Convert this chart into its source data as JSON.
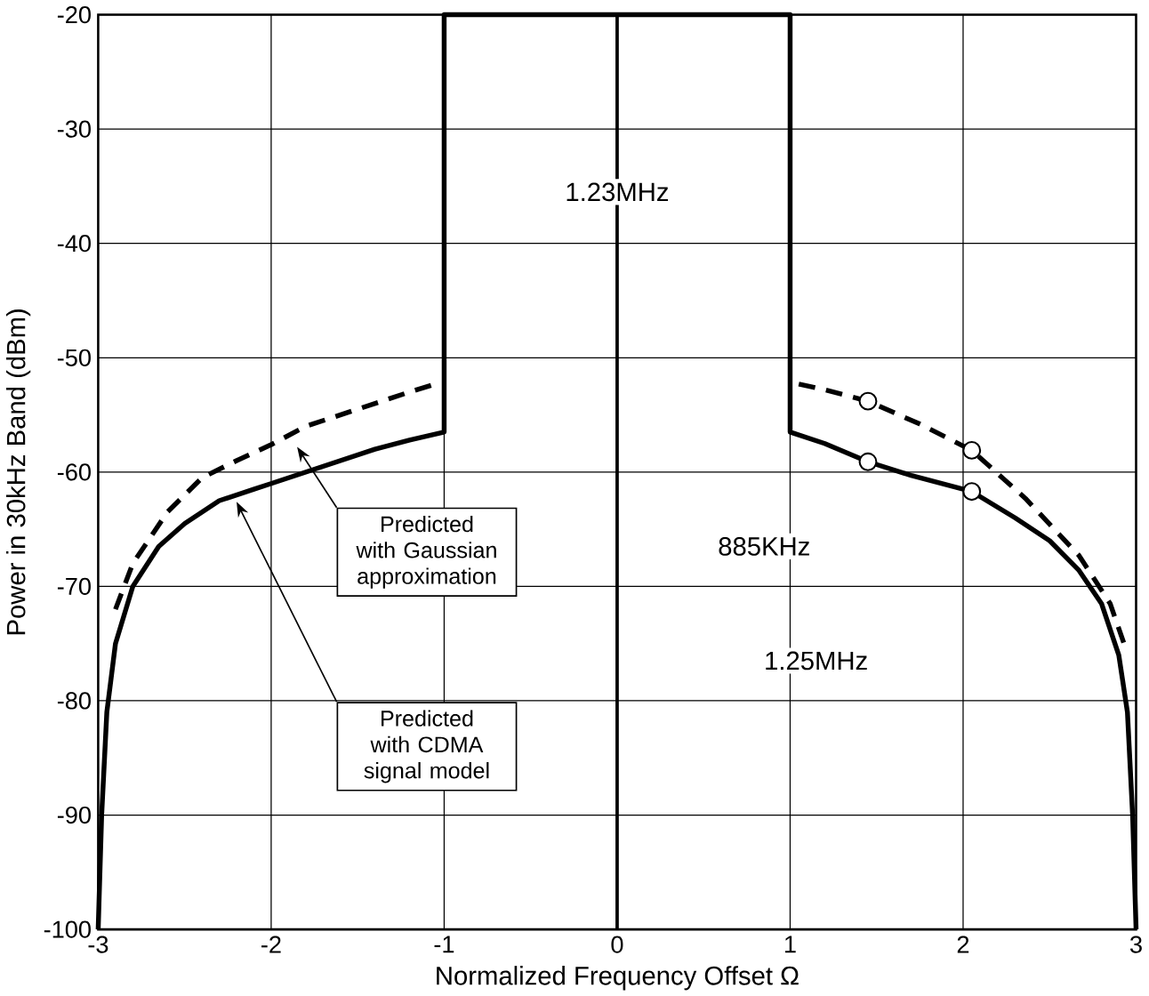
{
  "chart_data": {
    "type": "line",
    "xlabel": "Normalized Frequency Offset Ω",
    "ylabel": "Power in 30kHz Band (dBm)",
    "xlim": [
      -3,
      3
    ],
    "ylim": [
      -100,
      -20
    ],
    "xticks": [
      -3,
      -2,
      -1,
      0,
      1,
      2,
      3
    ],
    "yticks": [
      -100,
      -90,
      -80,
      -70,
      -60,
      -50,
      -40,
      -30,
      -20
    ],
    "grid": true,
    "series": [
      {
        "color": "#000000",
        "line_style": "solid",
        "marker": "none",
        "x": [
          -3,
          -2.98,
          -2.95,
          -2.9,
          -2.8,
          -2.65,
          -2.5,
          -2.3,
          -2.1,
          -2,
          -1.7,
          -1.4,
          -1.2,
          -1,
          -1,
          1,
          1,
          1.2,
          1.45,
          1.7,
          2.05,
          2.3,
          2.5,
          2.67,
          2.8,
          2.9,
          2.95,
          2.98,
          3
        ],
        "values": [
          -100,
          -90,
          -81,
          -75,
          -70,
          -66.5,
          -64.5,
          -62.5,
          -61.5,
          -61,
          -59.5,
          -58,
          -57.2,
          -56.5,
          -20,
          -20,
          -56.5,
          -57.5,
          -59.1,
          -60.3,
          -61.7,
          -64,
          -66,
          -68.6,
          -71.5,
          -76,
          -81,
          -90,
          -100
        ]
      },
      {
        "color": "#000000",
        "line_style": "dashed",
        "marker": "none",
        "x": [
          -2.9,
          -2.8,
          -2.6,
          -2.4,
          -2.2,
          -2,
          -1.8,
          -1.5,
          -1.2,
          -1.05,
          null,
          1.05,
          1.2,
          1.45,
          1.75,
          2.05,
          2.36,
          2.67,
          2.85,
          2.93
        ],
        "values": [
          -72,
          -68,
          -63.5,
          -60.5,
          -59,
          -57.6,
          -56,
          -54.5,
          -53,
          -52.3,
          null,
          -52.3,
          -52.8,
          -53.8,
          -55.8,
          -58.1,
          -62.3,
          -67.3,
          -71.5,
          -75
        ]
      },
      {
        "type": "scatter",
        "color": "#000000",
        "marker": "circle",
        "x": [
          1.45,
          1.45,
          2.05,
          2.05
        ],
        "values": [
          -53.8,
          -59.1,
          -58.1,
          -61.7
        ]
      }
    ],
    "ref_lines": [
      {
        "axis": "x",
        "value": 0
      }
    ],
    "annotations": [
      "1.23MHz",
      "885KHz",
      "1.25MHz",
      "Predicted with Gaussian approximation",
      "Predicted with CDMA signal model"
    ]
  }
}
